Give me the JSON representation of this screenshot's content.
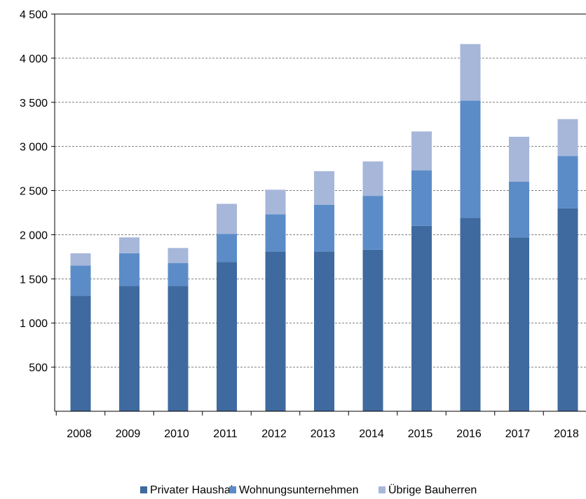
{
  "chart_data": {
    "type": "bar",
    "stacked": true,
    "categories": [
      "2008",
      "2009",
      "2010",
      "2011",
      "2012",
      "2013",
      "2014",
      "2015",
      "2016",
      "2017",
      "2018"
    ],
    "series": [
      {
        "name": "Privater Haushalt",
        "color": "#3f6a9f",
        "values": [
          1310,
          1420,
          1420,
          1690,
          1810,
          1810,
          1830,
          2100,
          2190,
          1970,
          2300
        ]
      },
      {
        "name": "Wohnungsunternehmen",
        "color": "#5b8cc8",
        "values": [
          340,
          370,
          260,
          320,
          420,
          530,
          610,
          630,
          1330,
          630,
          590
        ]
      },
      {
        "name": "Übrige Bauherren",
        "color": "#a7b7da",
        "values": [
          140,
          180,
          170,
          340,
          280,
          380,
          390,
          440,
          640,
          510,
          420
        ]
      }
    ],
    "ylim": [
      0,
      4500
    ],
    "yticks": [
      500,
      1000,
      1500,
      2000,
      2500,
      3000,
      3500,
      4000,
      4500
    ],
    "ytick_labels": [
      "500",
      "1 000",
      "1 500",
      "2 000",
      "2 500",
      "3 000",
      "3 500",
      "4 000",
      "4 500"
    ],
    "grid": true,
    "legend_position": "bottom"
  }
}
